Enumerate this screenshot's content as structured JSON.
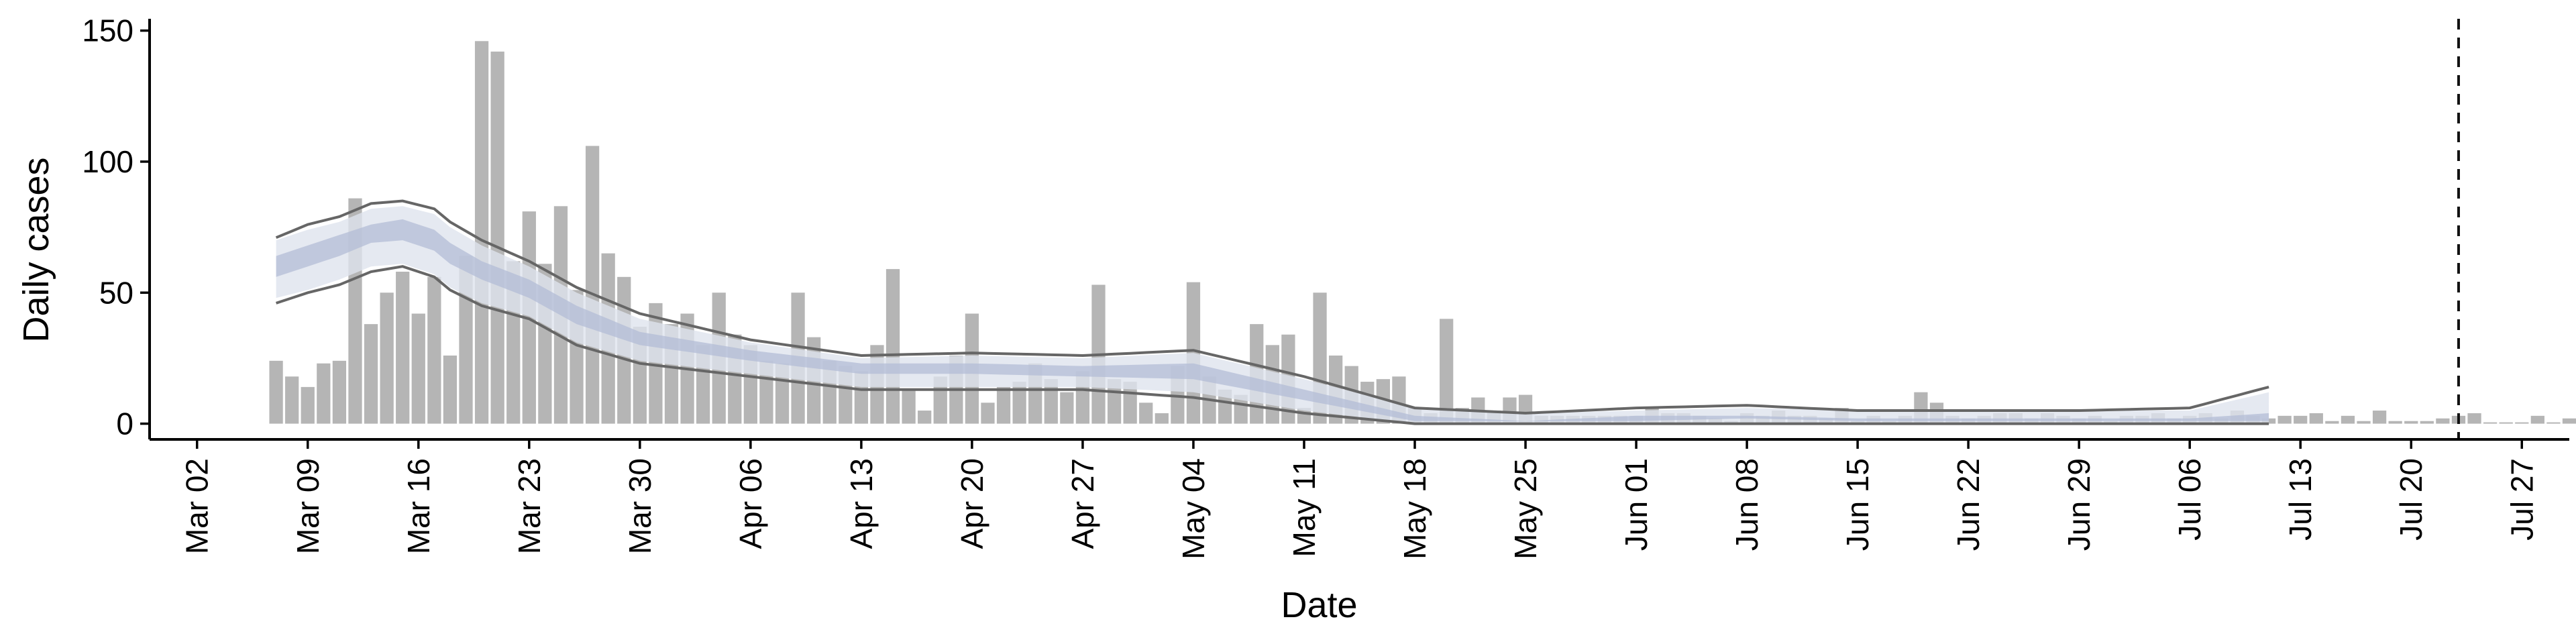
{
  "chart_data": {
    "type": "bar",
    "xlabel": "Date",
    "ylabel": "Daily cases",
    "x_axis": {
      "type": "date",
      "start": "2020-03-02",
      "range": [
        "2020-02-28",
        "2020-07-30"
      ],
      "ticks": [
        "Mar 02",
        "Mar 09",
        "Mar 16",
        "Mar 23",
        "Mar 30",
        "Apr 06",
        "Apr 13",
        "Apr 20",
        "Apr 27",
        "May 04",
        "May 11",
        "May 18",
        "May 25",
        "Jun 01",
        "Jun 08",
        "Jun 15",
        "Jun 22",
        "Jun 29",
        "Jul 06",
        "Jul 13",
        "Jul 20",
        "Jul 27"
      ]
    },
    "y_axis": {
      "range": [
        -6,
        154
      ],
      "ticks": [
        0,
        50,
        100,
        150
      ]
    },
    "grid": false,
    "vline_date": "2020-07-23",
    "series": [
      {
        "kind": "bars",
        "color": "#b5b5b5",
        "start_date": "2020-03-07",
        "values": [
          24,
          18,
          14,
          23,
          24,
          86,
          38,
          50,
          58,
          42,
          56,
          26,
          64,
          146,
          142,
          62,
          81,
          61,
          83,
          51,
          106,
          65,
          56,
          37,
          46,
          38,
          42,
          30,
          50,
          34,
          30,
          24,
          23,
          50,
          33,
          24,
          22,
          20,
          30,
          59,
          13,
          5,
          18,
          26,
          42,
          8,
          14,
          16,
          23,
          17,
          12,
          20,
          53,
          17,
          16,
          8,
          4,
          22,
          54,
          18,
          13,
          11,
          38,
          30,
          34,
          6,
          50,
          26,
          22,
          16,
          17,
          18,
          6,
          4,
          40,
          6,
          10,
          5,
          10,
          11,
          3,
          3,
          3,
          3,
          3,
          3,
          3,
          6,
          4,
          4,
          3,
          2,
          1,
          4,
          3,
          5,
          3,
          3,
          2,
          6,
          1,
          3,
          1,
          3,
          12,
          8,
          3,
          2,
          3,
          4,
          4,
          2,
          4,
          3,
          2,
          3,
          1,
          3,
          3,
          4,
          2,
          3,
          4,
          2,
          5,
          3,
          2,
          3,
          3,
          4,
          1,
          3,
          1,
          5,
          1,
          1,
          1,
          2,
          3,
          4,
          0,
          0,
          0,
          3,
          0,
          2,
          3,
          0,
          0,
          0,
          1
        ]
      },
      {
        "kind": "model",
        "start_date": "2020-03-07",
        "end_date": "2020-07-11",
        "fill_outer": "#dfe3ee",
        "fill_inner": "#b3bcd6",
        "line_color": "#666666",
        "knot_dates": [
          "2020-03-07",
          "2020-03-09",
          "2020-03-11",
          "2020-03-13",
          "2020-03-15",
          "2020-03-17",
          "2020-03-18",
          "2020-03-20",
          "2020-03-23",
          "2020-03-26",
          "2020-03-30",
          "2020-04-06",
          "2020-04-13",
          "2020-04-20",
          "2020-04-27",
          "2020-05-04",
          "2020-05-11",
          "2020-05-18",
          "2020-05-25",
          "2020-06-01",
          "2020-06-08",
          "2020-06-15",
          "2020-06-22",
          "2020-06-29",
          "2020-07-06",
          "2020-07-11"
        ],
        "upper": [
          71,
          76,
          79,
          84,
          85,
          82,
          77,
          70,
          62,
          52,
          42,
          32,
          26,
          27,
          26,
          28,
          18,
          6,
          4,
          6,
          7,
          5,
          5,
          5,
          6,
          14
        ],
        "outer_high": [
          70,
          74,
          77,
          82,
          83,
          80,
          75,
          68,
          60,
          50,
          40,
          31,
          25,
          26,
          25,
          27,
          17,
          6,
          4,
          5,
          6,
          5,
          5,
          5,
          5,
          12
        ],
        "inner_high": [
          64,
          68,
          72,
          76,
          78,
          74,
          69,
          62,
          55,
          45,
          35,
          28,
          23,
          23,
          22,
          23,
          13,
          3,
          1,
          3,
          3,
          2,
          2,
          2,
          2,
          4
        ],
        "inner_low": [
          56,
          60,
          64,
          69,
          70,
          66,
          61,
          55,
          48,
          38,
          30,
          24,
          19,
          19,
          18,
          17,
          9,
          1,
          1,
          1,
          2,
          1,
          1,
          1,
          1,
          1
        ],
        "outer_low": [
          48,
          51,
          55,
          60,
          61,
          57,
          52,
          46,
          41,
          31,
          24,
          19,
          14,
          14,
          14,
          12,
          5,
          0,
          0,
          0,
          0,
          0,
          0,
          0,
          0,
          0
        ],
        "lower": [
          46,
          50,
          53,
          58,
          60,
          56,
          51,
          45,
          40,
          30,
          23,
          18,
          13,
          13,
          13,
          10,
          4,
          0,
          0,
          0,
          0,
          0,
          0,
          0,
          0,
          0
        ]
      }
    ]
  }
}
